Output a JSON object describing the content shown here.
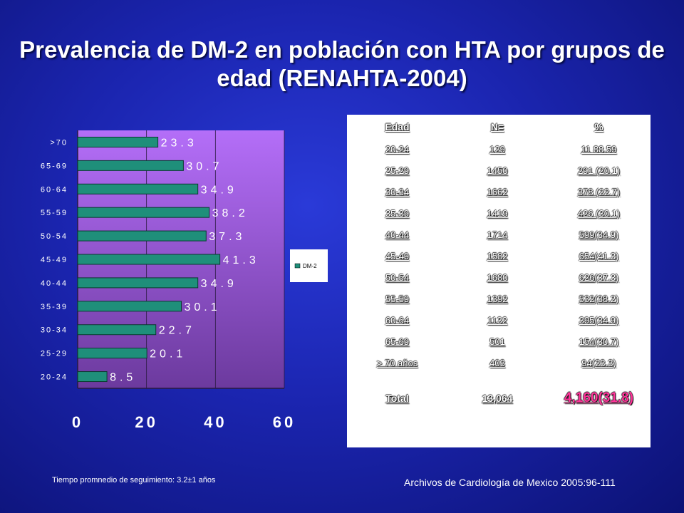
{
  "title": "Prevalencia de DM-2 en población con HTA por grupos de edad (RENAHTA-2004)",
  "chart_data": {
    "type": "bar",
    "orientation": "horizontal",
    "categories": [
      "20-24",
      "25-29",
      "30-34",
      "35-39",
      "40-44",
      "45-49",
      "50-54",
      "55-59",
      "60-64",
      "65-69",
      ">70"
    ],
    "series": [
      {
        "name": "DM-2",
        "values": [
          8.5,
          20.1,
          22.7,
          30.1,
          34.9,
          41.3,
          37.3,
          38.2,
          34.9,
          30.7,
          23.3
        ]
      }
    ],
    "data_labels": [
      "8.5",
      "20.1",
      "22.7",
      "30.1",
      "34.9",
      "41.3",
      "37.3",
      "38.2",
      "34.9",
      "30.7",
      "23.3"
    ],
    "xticks": [
      "0",
      "20",
      "40",
      "60"
    ],
    "xlim": [
      0,
      60
    ],
    "legend": "right",
    "bar_color": "#1f8f7a",
    "plot_bg": "#9f5fe5"
  },
  "table": {
    "headers": [
      "Edad",
      "N=",
      "%"
    ],
    "rows": [
      [
        "20-24",
        "129",
        "11 88.59"
      ],
      [
        "25-29",
        "1450",
        "291 (20.1)"
      ],
      [
        "30-34",
        "1662",
        "378 (22.7)"
      ],
      [
        "35-39",
        "1419",
        "426 (30.1)"
      ],
      [
        "40-44",
        "1714",
        "599(34.9)"
      ],
      [
        "45-49",
        "1582",
        "654(41.3)"
      ],
      [
        "50-54",
        "1680",
        "626(37.3)"
      ],
      [
        "55-59",
        "1392",
        "532(38.2)"
      ],
      [
        "60-64",
        "1132",
        "395(34.9)"
      ],
      [
        "65-69",
        "501",
        "154(30.7)"
      ],
      [
        "> 70 años",
        "403",
        "94(23.3)"
      ]
    ],
    "total": [
      "Total",
      "13,064",
      "4,160(31.8)"
    ]
  },
  "footnote": "Tiempo promnedio de seguimiento: 3.2±1 años",
  "source": "Archivos de Cardiología de Mexico 2005:96-111"
}
